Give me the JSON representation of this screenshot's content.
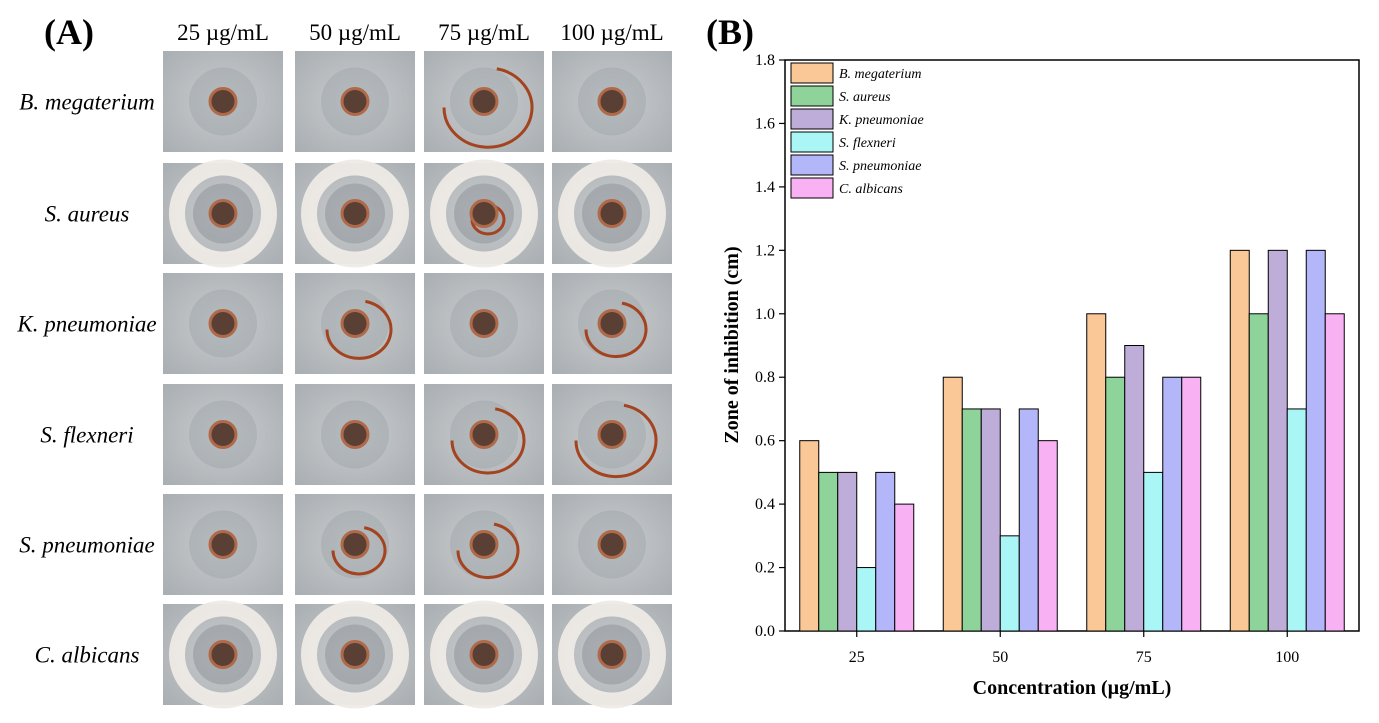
{
  "panel_a": {
    "label": "(A)",
    "columns": [
      "25 µg/mL",
      "50 µg/mL",
      "75 µg/mL",
      "100 µg/mL"
    ],
    "rows": [
      "B. megaterium",
      "S. aureus",
      "K. pneumoniae",
      "S. flexneri",
      "S. pneumoniae",
      "C. albicans"
    ],
    "plate_background": "#b8bcc0",
    "disc_color": "#5a3f35",
    "stain_color": "#a4431f",
    "halo_color": "#eeeae6"
  },
  "panel_b_label": "(B)",
  "chart_data": {
    "type": "bar",
    "categories": [
      "25",
      "50",
      "75",
      "100"
    ],
    "xlabel": "Concentration (µg/mL)",
    "ylabel": "Zone of inhibition (cm)",
    "ylim": [
      0,
      1.8
    ],
    "yticks": [
      "0.0",
      "0.2",
      "0.4",
      "0.6",
      "0.8",
      "1.0",
      "1.2",
      "1.4",
      "1.6",
      "1.8"
    ],
    "legend_position": "top-left",
    "grid": false,
    "series": [
      {
        "name": "B. megaterium",
        "color": "#f9c896",
        "values": [
          0.6,
          0.8,
          1.0,
          1.2
        ]
      },
      {
        "name": "S. aureus",
        "color": "#8ed49a",
        "values": [
          0.5,
          0.7,
          0.8,
          1.0
        ]
      },
      {
        "name": "K. pneumoniae",
        "color": "#bfadd9",
        "values": [
          0.5,
          0.7,
          0.9,
          1.2
        ]
      },
      {
        "name": "S. flexneri",
        "color": "#aaf5f5",
        "values": [
          0.2,
          0.3,
          0.5,
          0.7
        ]
      },
      {
        "name": "S. pneumoniae",
        "color": "#b3b6f8",
        "values": [
          0.5,
          0.7,
          0.8,
          1.2
        ]
      },
      {
        "name": "C. albicans",
        "color": "#f8b2f4",
        "values": [
          0.4,
          0.6,
          0.8,
          1.0
        ]
      }
    ]
  }
}
